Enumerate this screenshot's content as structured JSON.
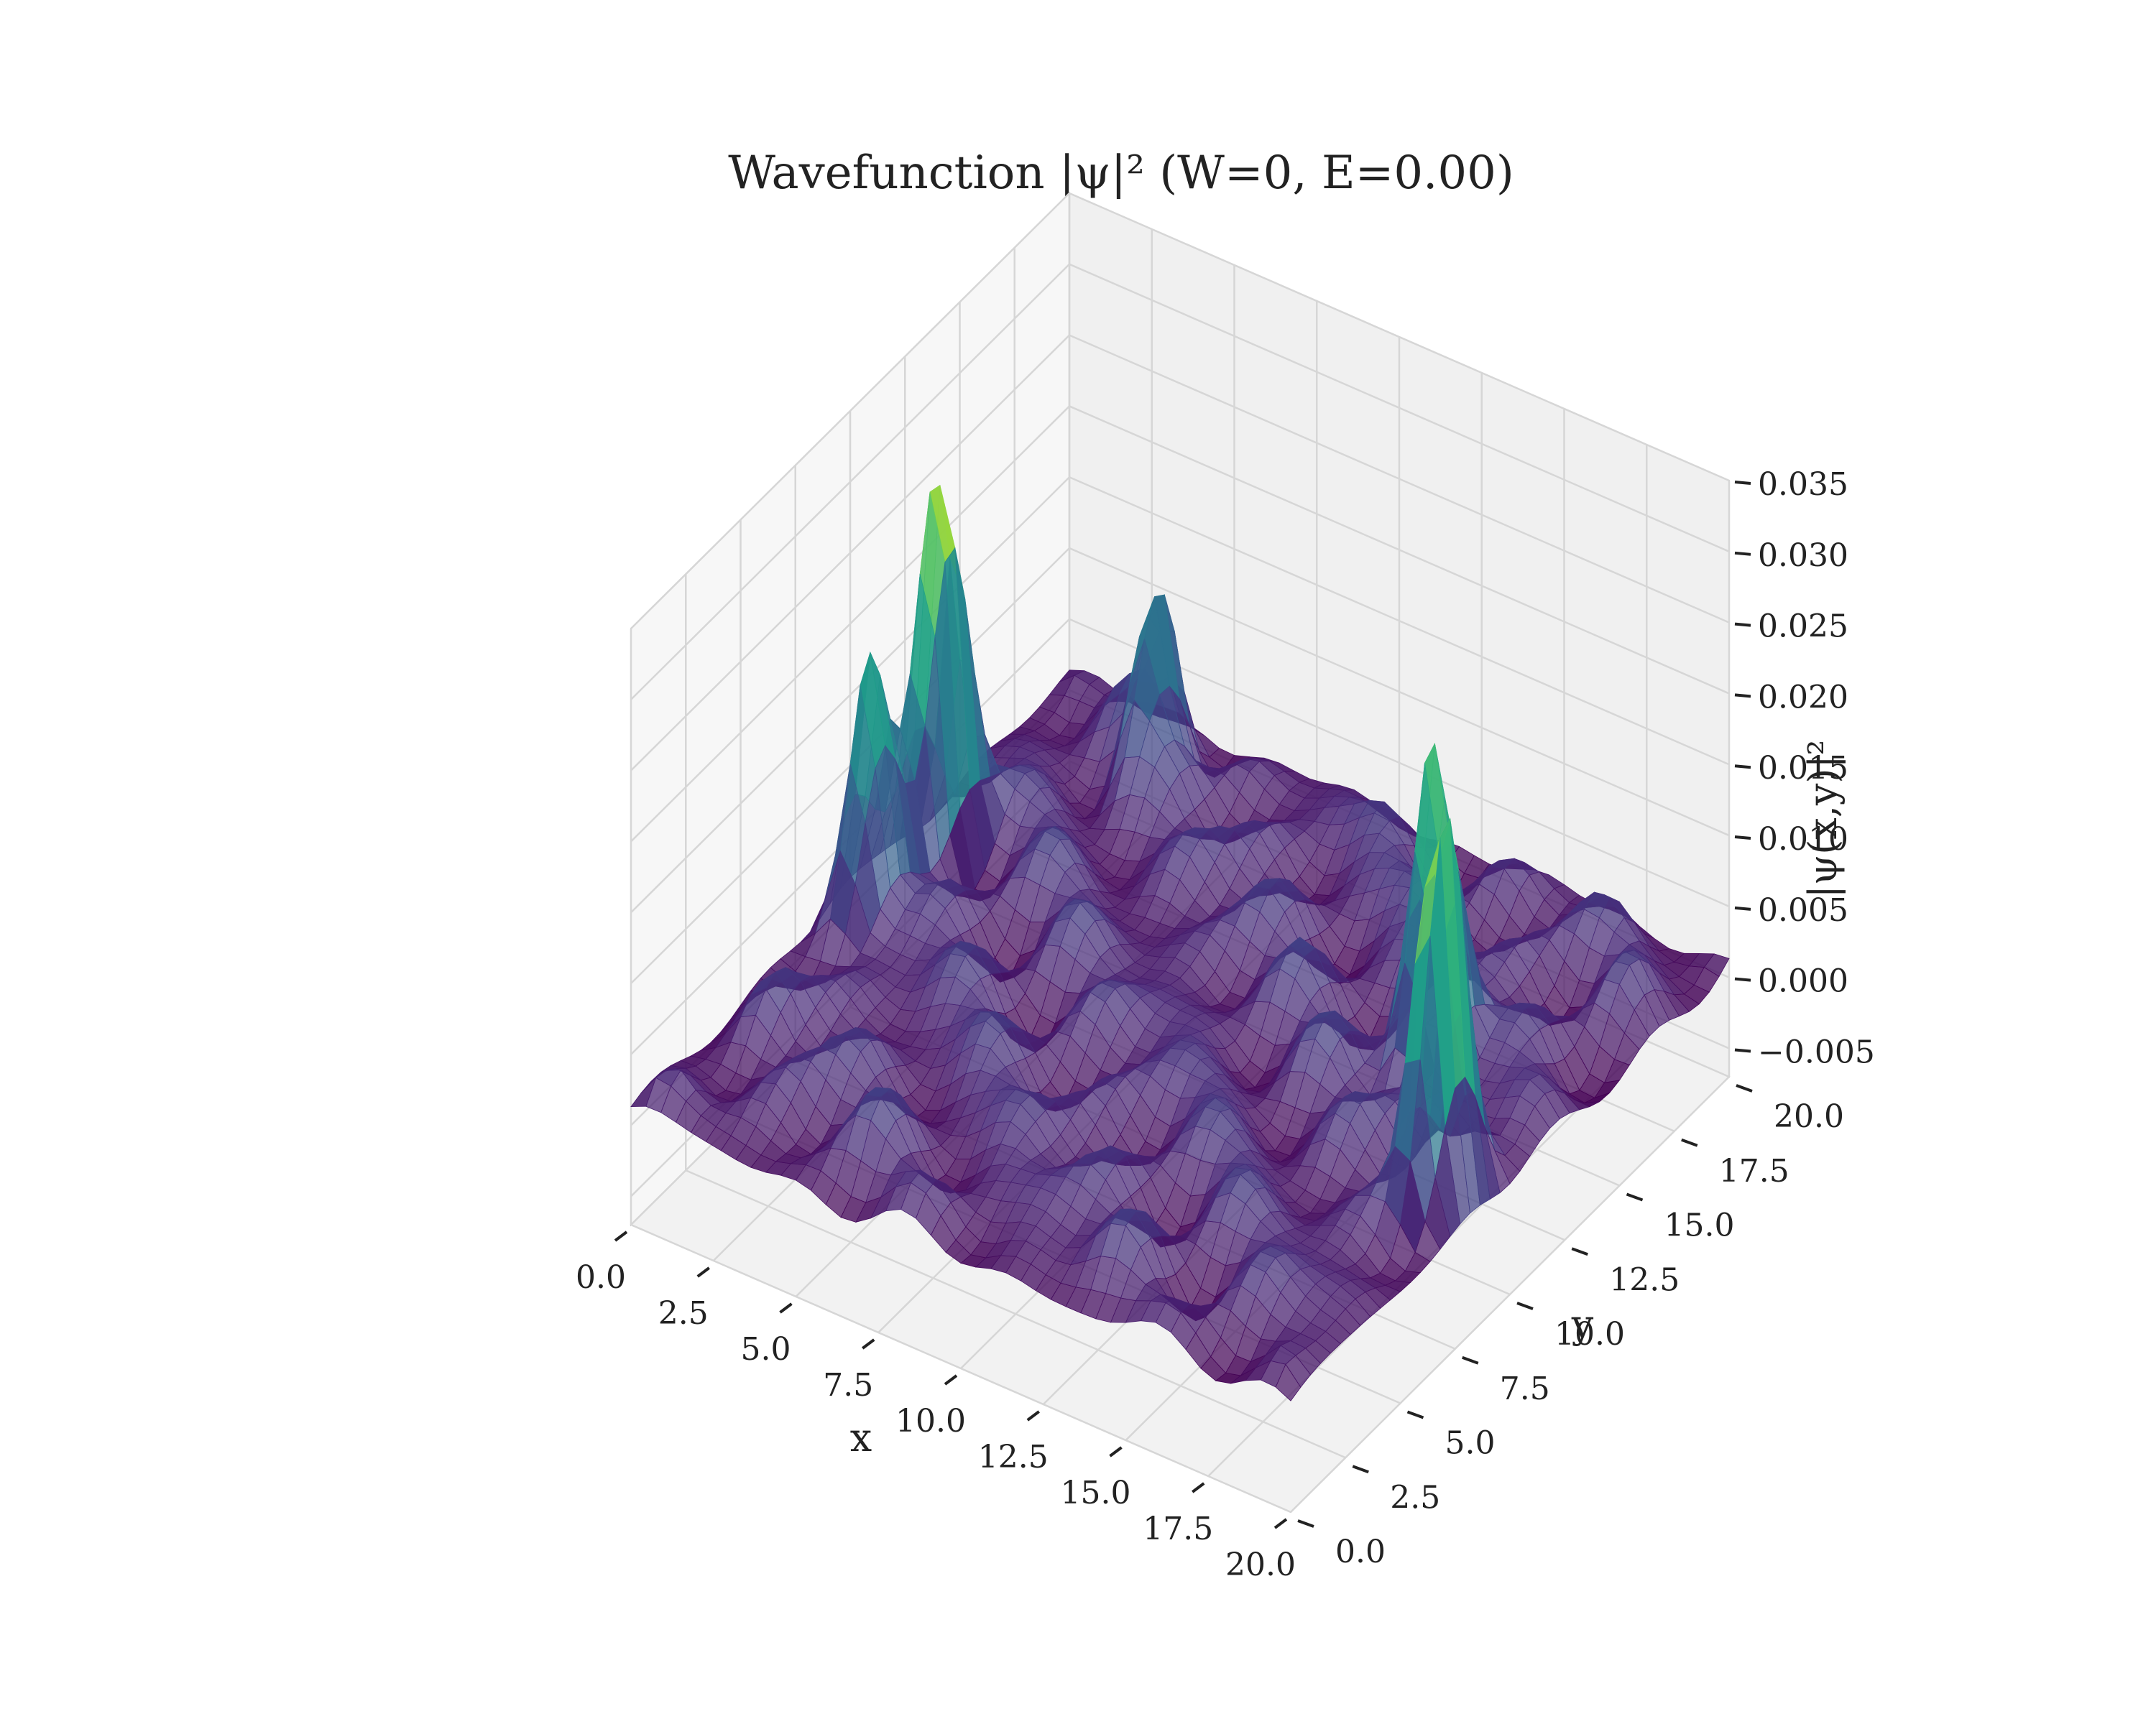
{
  "chart_data": {
    "type": "surface",
    "title": "Wavefunction |ψ|² (W=0, E=0.00)",
    "xlabel": "x",
    "ylabel": "y",
    "zlabel": "|ψ(x,y)|²",
    "xlim": [
      0,
      20
    ],
    "ylim": [
      0,
      20
    ],
    "zlim": [
      -0.007,
      0.035
    ],
    "x_ticks": [
      "0.0",
      "2.5",
      "5.0",
      "7.5",
      "10.0",
      "12.5",
      "15.0",
      "17.5",
      "20.0"
    ],
    "y_ticks": [
      "0.0",
      "2.5",
      "5.0",
      "7.5",
      "10.0",
      "12.5",
      "15.0",
      "17.5",
      "20.0"
    ],
    "z_ticks": [
      "−0.005",
      "0.000",
      "0.005",
      "0.010",
      "0.015",
      "0.020",
      "0.025",
      "0.030",
      "0.035"
    ],
    "x_tick_values": [
      0,
      2.5,
      5,
      7.5,
      10,
      12.5,
      15,
      17.5,
      20
    ],
    "y_tick_values": [
      0,
      2.5,
      5,
      7.5,
      10,
      12.5,
      15,
      17.5,
      20
    ],
    "z_tick_values": [
      -0.005,
      0,
      0.005,
      0.01,
      0.015,
      0.02,
      0.025,
      0.03,
      0.035
    ],
    "colormap": "viridis",
    "grid": true,
    "peaks": [
      {
        "x": 1.0,
        "y": 12.5,
        "z": 0.029
      },
      {
        "x": 0.9,
        "y": 9.5,
        "z": 0.02
      },
      {
        "x": 19.0,
        "y": 8.5,
        "z": 0.029
      },
      {
        "x": 16.0,
        "y": 12.5,
        "z": 0.022
      },
      {
        "x": 4.0,
        "y": 18.0,
        "z": 0.012
      }
    ]
  }
}
